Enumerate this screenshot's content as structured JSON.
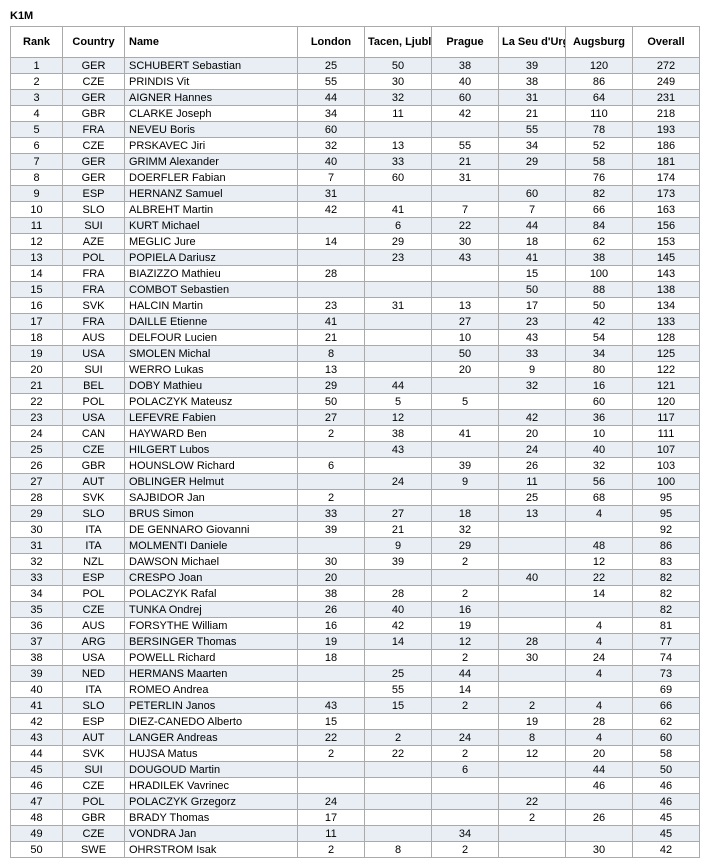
{
  "title": "K1M",
  "columns": [
    "Rank",
    "Country",
    "Name",
    "London",
    "Tacen, Ljubljana",
    "Prague",
    "La Seu d'Urgell",
    "Augsburg",
    "Overall"
  ],
  "rows": [
    {
      "rank": 1,
      "country": "GER",
      "name": "SCHUBERT Sebastian",
      "london": "25",
      "tacen": "50",
      "prague": "38",
      "laseu": "39",
      "augsburg": "120",
      "overall": "272"
    },
    {
      "rank": 2,
      "country": "CZE",
      "name": "PRINDIS Vit",
      "london": "55",
      "tacen": "30",
      "prague": "40",
      "laseu": "38",
      "augsburg": "86",
      "overall": "249"
    },
    {
      "rank": 3,
      "country": "GER",
      "name": "AIGNER Hannes",
      "london": "44",
      "tacen": "32",
      "prague": "60",
      "laseu": "31",
      "augsburg": "64",
      "overall": "231"
    },
    {
      "rank": 4,
      "country": "GBR",
      "name": "CLARKE Joseph",
      "london": "34",
      "tacen": "11",
      "prague": "42",
      "laseu": "21",
      "augsburg": "110",
      "overall": "218"
    },
    {
      "rank": 5,
      "country": "FRA",
      "name": "NEVEU Boris",
      "london": "60",
      "tacen": "",
      "prague": "",
      "laseu": "55",
      "augsburg": "78",
      "overall": "193"
    },
    {
      "rank": 6,
      "country": "CZE",
      "name": "PRSKAVEC Jiri",
      "london": "32",
      "tacen": "13",
      "prague": "55",
      "laseu": "34",
      "augsburg": "52",
      "overall": "186"
    },
    {
      "rank": 7,
      "country": "GER",
      "name": "GRIMM Alexander",
      "london": "40",
      "tacen": "33",
      "prague": "21",
      "laseu": "29",
      "augsburg": "58",
      "overall": "181"
    },
    {
      "rank": 8,
      "country": "GER",
      "name": "DOERFLER Fabian",
      "london": "7",
      "tacen": "60",
      "prague": "31",
      "laseu": "",
      "augsburg": "76",
      "overall": "174"
    },
    {
      "rank": 9,
      "country": "ESP",
      "name": "HERNANZ Samuel",
      "london": "31",
      "tacen": "",
      "prague": "",
      "laseu": "60",
      "augsburg": "82",
      "overall": "173"
    },
    {
      "rank": 10,
      "country": "SLO",
      "name": "ALBREHT Martin",
      "london": "42",
      "tacen": "41",
      "prague": "7",
      "laseu": "7",
      "augsburg": "66",
      "overall": "163"
    },
    {
      "rank": 11,
      "country": "SUI",
      "name": "KURT Michael",
      "london": "",
      "tacen": "6",
      "prague": "22",
      "laseu": "44",
      "augsburg": "84",
      "overall": "156"
    },
    {
      "rank": 12,
      "country": "AZE",
      "name": "MEGLIC Jure",
      "london": "14",
      "tacen": "29",
      "prague": "30",
      "laseu": "18",
      "augsburg": "62",
      "overall": "153"
    },
    {
      "rank": 13,
      "country": "POL",
      "name": "POPIELA Dariusz",
      "london": "",
      "tacen": "23",
      "prague": "43",
      "laseu": "41",
      "augsburg": "38",
      "overall": "145"
    },
    {
      "rank": 14,
      "country": "FRA",
      "name": "BIAZIZZO Mathieu",
      "london": "28",
      "tacen": "",
      "prague": "",
      "laseu": "15",
      "augsburg": "100",
      "overall": "143"
    },
    {
      "rank": 15,
      "country": "FRA",
      "name": "COMBOT Sebastien",
      "london": "",
      "tacen": "",
      "prague": "",
      "laseu": "50",
      "augsburg": "88",
      "overall": "138"
    },
    {
      "rank": 16,
      "country": "SVK",
      "name": "HALCIN Martin",
      "london": "23",
      "tacen": "31",
      "prague": "13",
      "laseu": "17",
      "augsburg": "50",
      "overall": "134"
    },
    {
      "rank": 17,
      "country": "FRA",
      "name": "DAILLE Etienne",
      "london": "41",
      "tacen": "",
      "prague": "27",
      "laseu": "23",
      "augsburg": "42",
      "overall": "133"
    },
    {
      "rank": 18,
      "country": "AUS",
      "name": "DELFOUR Lucien",
      "london": "21",
      "tacen": "",
      "prague": "10",
      "laseu": "43",
      "augsburg": "54",
      "overall": "128"
    },
    {
      "rank": 19,
      "country": "USA",
      "name": "SMOLEN Michal",
      "london": "8",
      "tacen": "",
      "prague": "50",
      "laseu": "33",
      "augsburg": "34",
      "overall": "125"
    },
    {
      "rank": 20,
      "country": "SUI",
      "name": "WERRO Lukas",
      "london": "13",
      "tacen": "",
      "prague": "20",
      "laseu": "9",
      "augsburg": "80",
      "overall": "122"
    },
    {
      "rank": 21,
      "country": "BEL",
      "name": "DOBY Mathieu",
      "london": "29",
      "tacen": "44",
      "prague": "",
      "laseu": "32",
      "augsburg": "16",
      "overall": "121"
    },
    {
      "rank": 22,
      "country": "POL",
      "name": "POLACZYK Mateusz",
      "london": "50",
      "tacen": "5",
      "prague": "5",
      "laseu": "",
      "augsburg": "60",
      "overall": "120"
    },
    {
      "rank": 23,
      "country": "USA",
      "name": "LEFEVRE Fabien",
      "london": "27",
      "tacen": "12",
      "prague": "",
      "laseu": "42",
      "augsburg": "36",
      "overall": "117"
    },
    {
      "rank": 24,
      "country": "CAN",
      "name": "HAYWARD Ben",
      "london": "2",
      "tacen": "38",
      "prague": "41",
      "laseu": "20",
      "augsburg": "10",
      "overall": "111"
    },
    {
      "rank": 25,
      "country": "CZE",
      "name": "HILGERT Lubos",
      "london": "",
      "tacen": "43",
      "prague": "",
      "laseu": "24",
      "augsburg": "40",
      "overall": "107"
    },
    {
      "rank": 26,
      "country": "GBR",
      "name": "HOUNSLOW Richard",
      "london": "6",
      "tacen": "",
      "prague": "39",
      "laseu": "26",
      "augsburg": "32",
      "overall": "103"
    },
    {
      "rank": 27,
      "country": "AUT",
      "name": "OBLINGER Helmut",
      "london": "",
      "tacen": "24",
      "prague": "9",
      "laseu": "11",
      "augsburg": "56",
      "overall": "100"
    },
    {
      "rank": 28,
      "country": "SVK",
      "name": "SAJBIDOR Jan",
      "london": "2",
      "tacen": "",
      "prague": "",
      "laseu": "25",
      "augsburg": "68",
      "overall": "95"
    },
    {
      "rank": 29,
      "country": "SLO",
      "name": "BRUS Simon",
      "london": "33",
      "tacen": "27",
      "prague": "18",
      "laseu": "13",
      "augsburg": "4",
      "overall": "95"
    },
    {
      "rank": 30,
      "country": "ITA",
      "name": "DE GENNARO Giovanni",
      "london": "39",
      "tacen": "21",
      "prague": "32",
      "laseu": "",
      "augsburg": "",
      "overall": "92"
    },
    {
      "rank": 31,
      "country": "ITA",
      "name": "MOLMENTI Daniele",
      "london": "",
      "tacen": "9",
      "prague": "29",
      "laseu": "",
      "augsburg": "48",
      "overall": "86"
    },
    {
      "rank": 32,
      "country": "NZL",
      "name": "DAWSON Michael",
      "london": "30",
      "tacen": "39",
      "prague": "2",
      "laseu": "",
      "augsburg": "12",
      "overall": "83"
    },
    {
      "rank": 33,
      "country": "ESP",
      "name": "CRESPO Joan",
      "london": "20",
      "tacen": "",
      "prague": "",
      "laseu": "40",
      "augsburg": "22",
      "overall": "82"
    },
    {
      "rank": 34,
      "country": "POL",
      "name": "POLACZYK Rafal",
      "london": "38",
      "tacen": "28",
      "prague": "2",
      "laseu": "",
      "augsburg": "14",
      "overall": "82"
    },
    {
      "rank": 35,
      "country": "CZE",
      "name": "TUNKA Ondrej",
      "london": "26",
      "tacen": "40",
      "prague": "16",
      "laseu": "",
      "augsburg": "",
      "overall": "82"
    },
    {
      "rank": 36,
      "country": "AUS",
      "name": "FORSYTHE William",
      "london": "16",
      "tacen": "42",
      "prague": "19",
      "laseu": "",
      "augsburg": "4",
      "overall": "81"
    },
    {
      "rank": 37,
      "country": "ARG",
      "name": "BERSINGER Thomas",
      "london": "19",
      "tacen": "14",
      "prague": "12",
      "laseu": "28",
      "augsburg": "4",
      "overall": "77"
    },
    {
      "rank": 38,
      "country": "USA",
      "name": "POWELL Richard",
      "london": "18",
      "tacen": "",
      "prague": "2",
      "laseu": "30",
      "augsburg": "24",
      "overall": "74"
    },
    {
      "rank": 39,
      "country": "NED",
      "name": "HERMANS Maarten",
      "london": "",
      "tacen": "25",
      "prague": "44",
      "laseu": "",
      "augsburg": "4",
      "overall": "73"
    },
    {
      "rank": 40,
      "country": "ITA",
      "name": "ROMEO Andrea",
      "london": "",
      "tacen": "55",
      "prague": "14",
      "laseu": "",
      "augsburg": "",
      "overall": "69"
    },
    {
      "rank": 41,
      "country": "SLO",
      "name": "PETERLIN Janos",
      "london": "43",
      "tacen": "15",
      "prague": "2",
      "laseu": "2",
      "augsburg": "4",
      "overall": "66"
    },
    {
      "rank": 42,
      "country": "ESP",
      "name": "DIEZ-CANEDO Alberto",
      "london": "15",
      "tacen": "",
      "prague": "",
      "laseu": "19",
      "augsburg": "28",
      "overall": "62"
    },
    {
      "rank": 43,
      "country": "AUT",
      "name": "LANGER Andreas",
      "london": "22",
      "tacen": "2",
      "prague": "24",
      "laseu": "8",
      "augsburg": "4",
      "overall": "60"
    },
    {
      "rank": 44,
      "country": "SVK",
      "name": "HUJSA Matus",
      "london": "2",
      "tacen": "22",
      "prague": "2",
      "laseu": "12",
      "augsburg": "20",
      "overall": "58"
    },
    {
      "rank": 45,
      "country": "SUI",
      "name": "DOUGOUD Martin",
      "london": "",
      "tacen": "",
      "prague": "6",
      "laseu": "",
      "augsburg": "44",
      "overall": "50"
    },
    {
      "rank": 46,
      "country": "CZE",
      "name": "HRADILEK Vavrinec",
      "london": "",
      "tacen": "",
      "prague": "",
      "laseu": "",
      "augsburg": "46",
      "overall": "46"
    },
    {
      "rank": 47,
      "country": "POL",
      "name": "POLACZYK Grzegorz",
      "london": "24",
      "tacen": "",
      "prague": "",
      "laseu": "22",
      "augsburg": "",
      "overall": "46"
    },
    {
      "rank": 48,
      "country": "GBR",
      "name": "BRADY Thomas",
      "london": "17",
      "tacen": "",
      "prague": "",
      "laseu": "2",
      "augsburg": "26",
      "overall": "45"
    },
    {
      "rank": 49,
      "country": "CZE",
      "name": "VONDRA Jan",
      "london": "11",
      "tacen": "",
      "prague": "34",
      "laseu": "",
      "augsburg": "",
      "overall": "45"
    },
    {
      "rank": 50,
      "country": "SWE",
      "name": "OHRSTROM Isak",
      "london": "2",
      "tacen": "8",
      "prague": "2",
      "laseu": "",
      "augsburg": "30",
      "overall": "42"
    }
  ]
}
